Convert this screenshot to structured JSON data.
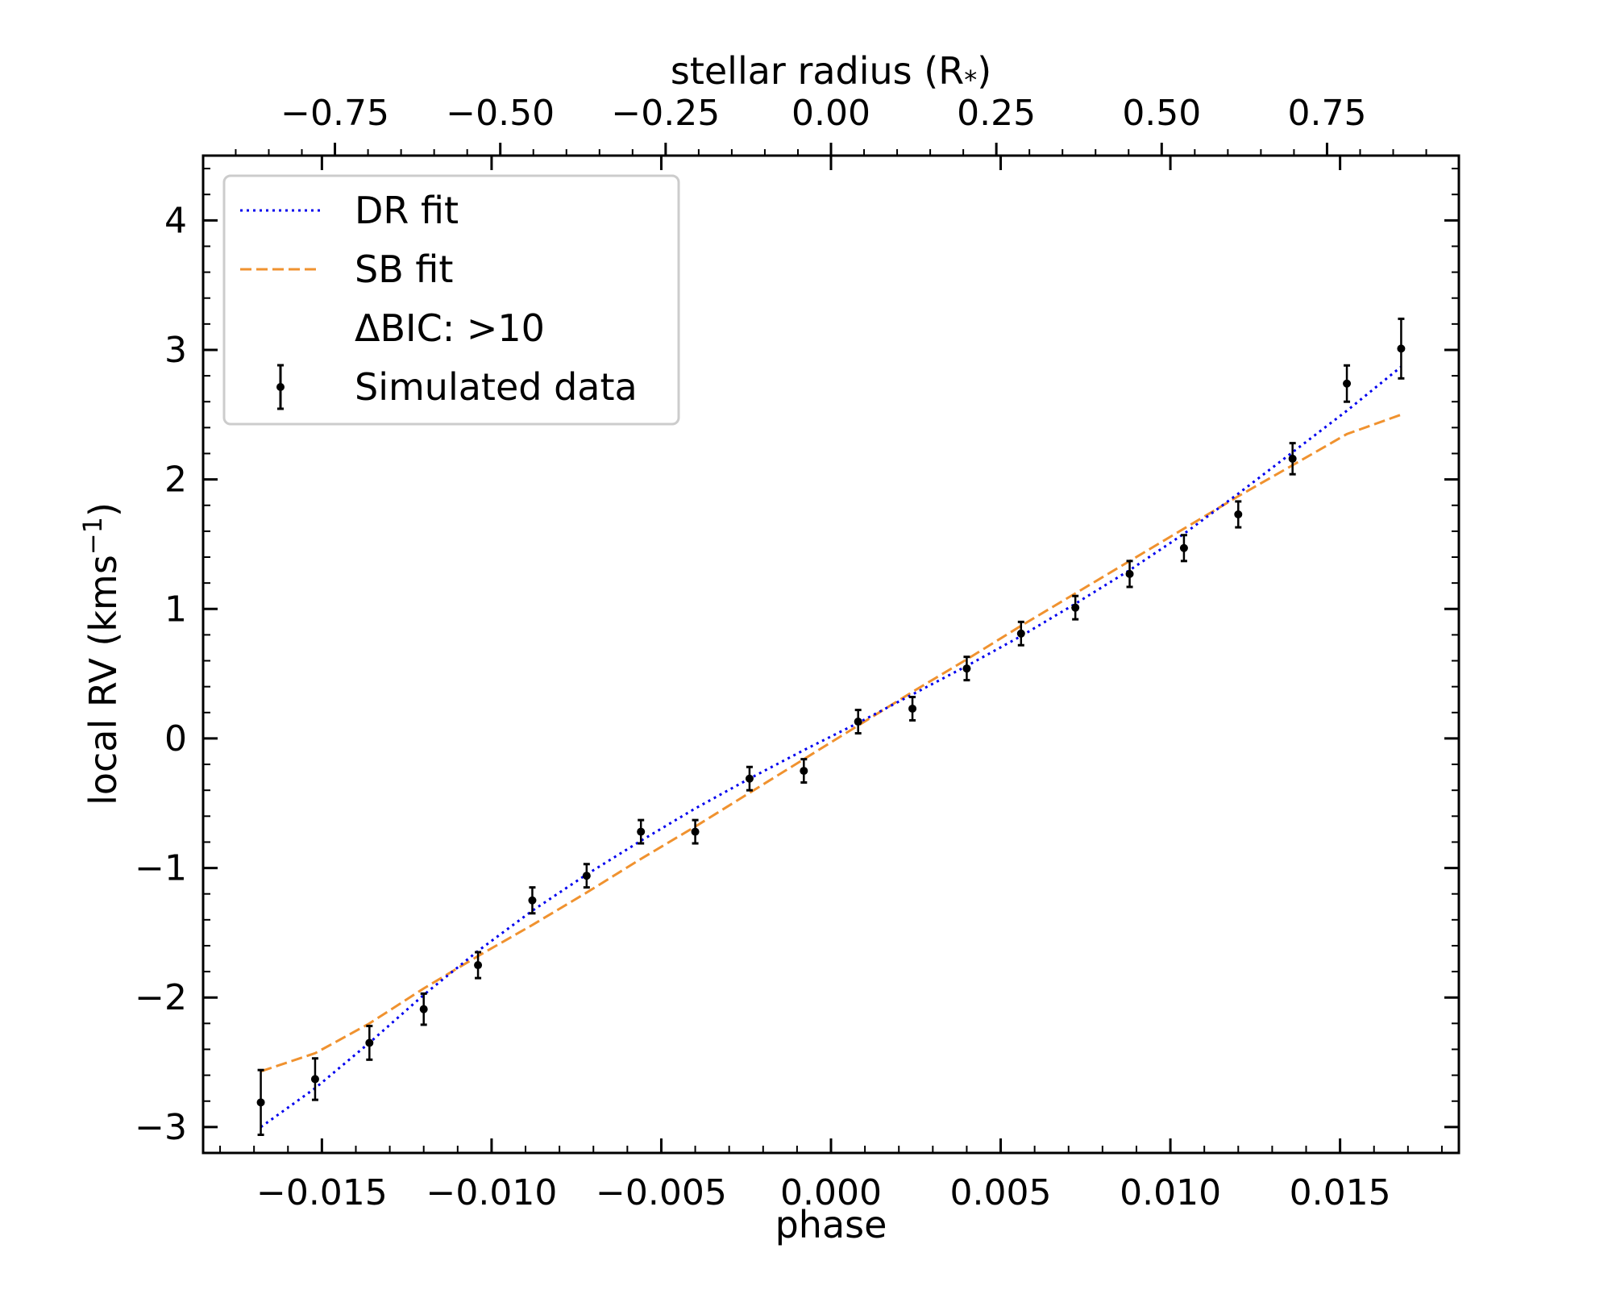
{
  "chart_data": {
    "type": "scatter",
    "title": "",
    "xlabel": "phase",
    "ylabel": "local RV (kms",
    "ylabel_sup": "−1",
    "ylabel_close": ")",
    "x2label": "stellar radius (R",
    "x2label_sub": "*",
    "x2label_close": ")",
    "xlim": [
      -0.0185,
      0.0185
    ],
    "ylim": [
      -3.2,
      4.5
    ],
    "x2lim": [
      -0.9493,
      0.9493
    ],
    "xticks": [
      -0.015,
      -0.01,
      -0.005,
      0.0,
      0.005,
      0.01,
      0.015
    ],
    "xtick_labels": [
      "−0.015",
      "−0.010",
      "−0.005",
      "0.000",
      "0.005",
      "0.010",
      "0.015"
    ],
    "yticks": [
      -3,
      -2,
      -1,
      0,
      1,
      2,
      3,
      4
    ],
    "ytick_labels": [
      "−3",
      "−2",
      "−1",
      "0",
      "1",
      "2",
      "3",
      "4"
    ],
    "x2ticks": [
      -0.75,
      -0.5,
      -0.25,
      0.0,
      0.25,
      0.5,
      0.75
    ],
    "x2tick_labels": [
      "−0.75",
      "−0.50",
      "−0.25",
      "0.00",
      "0.25",
      "0.50",
      "0.75"
    ],
    "legend": {
      "position": "upper-left",
      "entries": [
        "DR fit",
        "SB fit",
        "ΔBIC: >10",
        "Simulated data"
      ]
    },
    "colors": {
      "dr": "#0000ee",
      "sb": "#f0922f",
      "data": "#000000",
      "frame": "#000000",
      "legend_border": "#cccccc"
    },
    "series": [
      {
        "name": "Simulated data",
        "kind": "errorbar",
        "x": [
          -0.0168,
          -0.0152,
          -0.0136,
          -0.012,
          -0.0104,
          -0.0088,
          -0.0072,
          -0.0056,
          -0.004,
          -0.0024,
          -0.0008,
          0.0008,
          0.0024,
          0.004,
          0.0056,
          0.0072,
          0.0088,
          0.0104,
          0.012,
          0.0136,
          0.0152,
          0.0168
        ],
        "y": [
          -2.81,
          -2.63,
          -2.35,
          -2.09,
          -1.75,
          -1.25,
          -1.06,
          -0.72,
          -0.72,
          -0.31,
          -0.25,
          0.13,
          0.23,
          0.54,
          0.81,
          1.01,
          1.27,
          1.47,
          1.73,
          2.16,
          2.74,
          3.01
        ],
        "yerr": [
          0.25,
          0.16,
          0.13,
          0.12,
          0.1,
          0.1,
          0.09,
          0.09,
          0.09,
          0.09,
          0.09,
          0.09,
          0.09,
          0.09,
          0.09,
          0.09,
          0.1,
          0.1,
          0.1,
          0.12,
          0.14,
          0.23
        ]
      },
      {
        "name": "DR fit",
        "kind": "line",
        "style": "dotted",
        "x": [
          -0.0168,
          -0.0152,
          -0.0136,
          -0.012,
          -0.0104,
          -0.0088,
          -0.0072,
          -0.0056,
          -0.004,
          -0.0024,
          -0.0008,
          0.0008,
          0.0024,
          0.004,
          0.0056,
          0.0072,
          0.0088,
          0.0104,
          0.012,
          0.0136,
          0.0152,
          0.0168
        ],
        "y": [
          -3.0,
          -2.7,
          -2.35,
          -1.98,
          -1.64,
          -1.33,
          -1.05,
          -0.79,
          -0.54,
          -0.31,
          -0.09,
          0.12,
          0.34,
          0.56,
          0.79,
          1.04,
          1.3,
          1.58,
          1.89,
          2.21,
          2.53,
          2.87
        ]
      },
      {
        "name": "SB fit",
        "kind": "line",
        "style": "dashed",
        "x": [
          -0.0168,
          -0.0152,
          -0.0136,
          -0.012,
          -0.0104,
          -0.0088,
          -0.0072,
          -0.0056,
          -0.004,
          -0.0024,
          -0.0008,
          0.0008,
          0.0024,
          0.004,
          0.0056,
          0.0072,
          0.0088,
          0.0104,
          0.012,
          0.0136,
          0.0152,
          0.0168
        ],
        "y": [
          -2.57,
          -2.43,
          -2.2,
          -1.93,
          -1.68,
          -1.44,
          -1.19,
          -0.93,
          -0.68,
          -0.42,
          -0.16,
          0.1,
          0.36,
          0.61,
          0.87,
          1.12,
          1.37,
          1.62,
          1.87,
          2.11,
          2.35,
          2.5
        ]
      }
    ]
  }
}
